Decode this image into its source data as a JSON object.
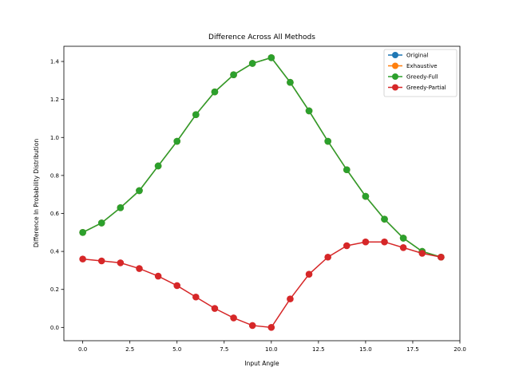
{
  "chart_data": {
    "type": "line",
    "title": "Difference Across All Methods",
    "xlabel": "Input Angle",
    "ylabel": "Difference In Probability Distribution",
    "xlim": [
      -1.0,
      20.0
    ],
    "ylim": [
      -0.07,
      1.48
    ],
    "xticks": [
      0.0,
      2.5,
      5.0,
      7.5,
      10.0,
      12.5,
      15.0,
      17.5,
      20.0
    ],
    "xtick_labels": [
      "0.0",
      "2.5",
      "5.0",
      "7.5",
      "10.0",
      "12.5",
      "15.0",
      "17.5",
      "20.0"
    ],
    "yticks": [
      0.0,
      0.2,
      0.4,
      0.6,
      0.8,
      1.0,
      1.2,
      1.4
    ],
    "ytick_labels": [
      "0.0",
      "0.2",
      "0.4",
      "0.6",
      "0.8",
      "1.0",
      "1.2",
      "1.4"
    ],
    "grid": false,
    "legend_position": "top-right",
    "x": [
      0,
      1,
      2,
      3,
      4,
      5,
      6,
      7,
      8,
      9,
      10,
      11,
      12,
      13,
      14,
      15,
      16,
      17,
      18,
      19
    ],
    "series": [
      {
        "name": "Original",
        "color": "#1f77b4",
        "values": [
          0.5,
          0.55,
          0.63,
          0.72,
          0.85,
          0.98,
          1.12,
          1.24,
          1.33,
          1.39,
          1.42,
          1.29,
          1.14,
          0.98,
          0.83,
          0.69,
          0.57,
          0.47,
          0.4,
          0.37
        ]
      },
      {
        "name": "Exhaustive",
        "color": "#ff7f0e",
        "values": [
          0.5,
          0.55,
          0.63,
          0.72,
          0.85,
          0.98,
          1.12,
          1.24,
          1.33,
          1.39,
          1.42,
          1.29,
          1.14,
          0.98,
          0.83,
          0.69,
          0.57,
          0.47,
          0.4,
          0.37
        ]
      },
      {
        "name": "Greedy-Full",
        "color": "#2ca02c",
        "values": [
          0.5,
          0.55,
          0.63,
          0.72,
          0.85,
          0.98,
          1.12,
          1.24,
          1.33,
          1.39,
          1.42,
          1.29,
          1.14,
          0.98,
          0.83,
          0.69,
          0.57,
          0.47,
          0.4,
          0.37
        ]
      },
      {
        "name": "Greedy-Partial",
        "color": "#d62728",
        "values": [
          0.36,
          0.35,
          0.34,
          0.31,
          0.27,
          0.22,
          0.16,
          0.1,
          0.05,
          0.01,
          0.0,
          0.15,
          0.28,
          0.37,
          0.43,
          0.45,
          0.45,
          0.42,
          0.39,
          0.37
        ]
      }
    ]
  }
}
